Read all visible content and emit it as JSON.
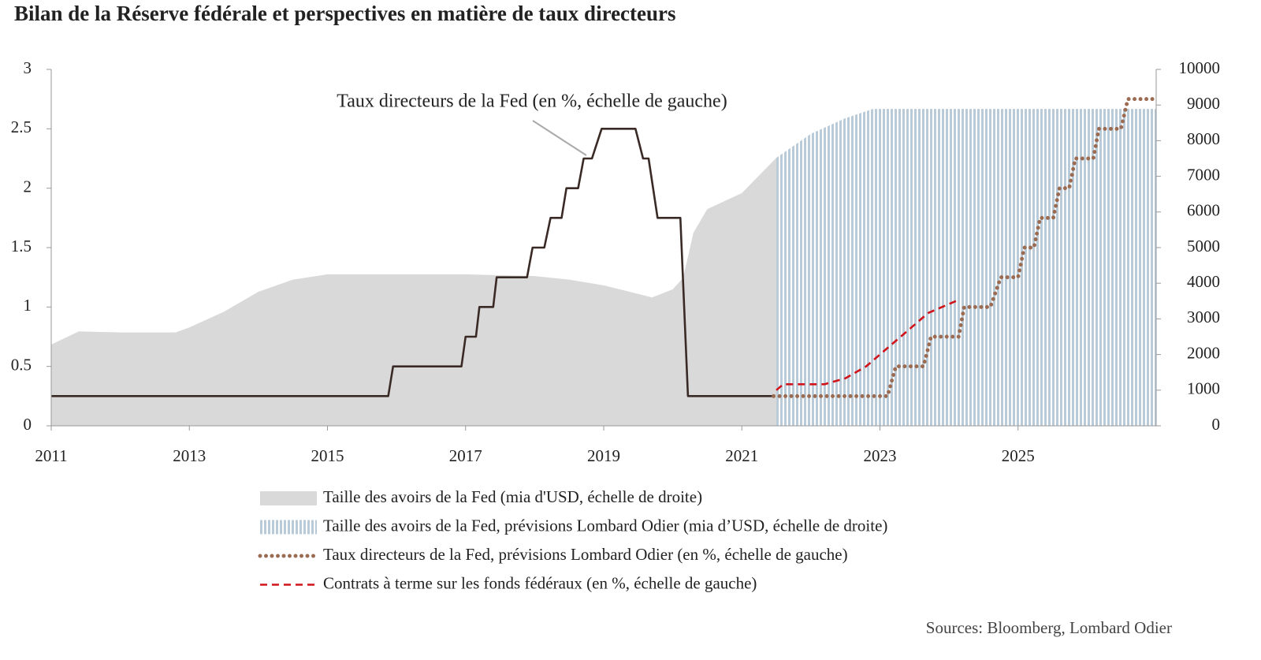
{
  "chart_data": {
    "type": "line",
    "title": "Bilan de la Réserve fédérale et perspectives en matière de taux directeurs",
    "source": "Sources: Bloomberg, Lombard Odier",
    "xlim": [
      2011,
      2027
    ],
    "xticks": [
      2011,
      2013,
      2015,
      2017,
      2019,
      2021,
      2023,
      2025
    ],
    "ylim": [
      0,
      3
    ],
    "yticks": [
      0,
      0.5,
      1,
      1.5,
      2,
      2.5,
      3
    ],
    "y2lim": [
      0,
      10000
    ],
    "y2ticks": [
      0,
      1000,
      2000,
      3000,
      4000,
      5000,
      6000,
      7000,
      8000,
      9000,
      10000
    ],
    "series": [
      {
        "name": "Taille des avoirs de la Fed (mia d'USD, échelle de droite)",
        "style": "area",
        "axis": "y2",
        "color": "#d9d9d9",
        "x": [
          2011.0,
          2011.4,
          2012.0,
          2012.8,
          2013.0,
          2013.5,
          2014.0,
          2014.5,
          2015.0,
          2016.0,
          2017.0,
          2018.0,
          2018.5,
          2019.0,
          2019.5,
          2019.7,
          2020.0,
          2020.15,
          2020.3,
          2020.5,
          2021.0,
          2021.5
        ],
        "values": [
          2280,
          2650,
          2620,
          2620,
          2760,
          3200,
          3760,
          4100,
          4250,
          4250,
          4250,
          4200,
          4100,
          3940,
          3700,
          3600,
          3830,
          4150,
          5420,
          6080,
          6530,
          7520
        ]
      },
      {
        "name": "Taille des avoirs de la Fed, prévisions Lombard Odier (mia d’USD, échelle de droite)",
        "style": "hatched-area",
        "axis": "y2",
        "color": "#b9cbd9",
        "x": [
          2021.5,
          2022.0,
          2022.5,
          2022.9,
          2027.0
        ],
        "values": [
          7520,
          8190,
          8630,
          8890,
          8890
        ]
      },
      {
        "name": "Taux directeurs de la Fed (en %, échelle de gauche)",
        "style": "solid",
        "legend": false,
        "color": "#3a2a26",
        "x": [
          2011.0,
          2015.88,
          2015.95,
          2016.94,
          2017.0,
          2017.15,
          2017.2,
          2017.4,
          2017.45,
          2017.89,
          2017.97,
          2018.14,
          2018.23,
          2018.39,
          2018.46,
          2018.63,
          2018.71,
          2018.83,
          2018.97,
          2019.46,
          2019.57,
          2019.65,
          2019.78,
          2020.11,
          2020.22,
          2021.46
        ],
        "values": [
          0.25,
          0.25,
          0.5,
          0.5,
          0.75,
          0.75,
          1.0,
          1.0,
          1.25,
          1.25,
          1.5,
          1.5,
          1.75,
          1.75,
          2.0,
          2.0,
          2.25,
          2.25,
          2.5,
          2.5,
          2.25,
          2.25,
          1.75,
          1.75,
          0.25,
          0.25
        ]
      },
      {
        "name": "Taux directeurs de la Fed, prévisions Lombard Odier (en %, échelle de gauche)",
        "style": "dotted",
        "color": "#9b6b52",
        "x": [
          2021.46,
          2023.11,
          2023.23,
          2023.63,
          2023.74,
          2024.14,
          2024.22,
          2024.6,
          2024.75,
          2025.0,
          2025.09,
          2025.23,
          2025.32,
          2025.51,
          2025.6,
          2025.74,
          2025.83,
          2026.09,
          2026.17,
          2026.49,
          2026.59,
          2026.97
        ],
        "values": [
          0.25,
          0.25,
          0.5,
          0.5,
          0.75,
          0.75,
          1.0,
          1.0,
          1.25,
          1.25,
          1.5,
          1.5,
          1.75,
          1.75,
          2.0,
          2.0,
          2.25,
          2.25,
          2.5,
          2.5,
          2.75,
          2.75
        ]
      },
      {
        "name": "Contrats à terme sur les fonds fédéraux (en %, échelle de gauche)",
        "style": "dashed",
        "color": "#d0141a",
        "x": [
          2021.5,
          2021.6,
          2022.2,
          2022.5,
          2022.8,
          2023.0,
          2023.2,
          2023.5,
          2023.7,
          2023.9,
          2024.1
        ],
        "values": [
          0.3,
          0.35,
          0.35,
          0.4,
          0.5,
          0.6,
          0.7,
          0.85,
          0.95,
          1.0,
          1.05
        ]
      }
    ]
  }
}
